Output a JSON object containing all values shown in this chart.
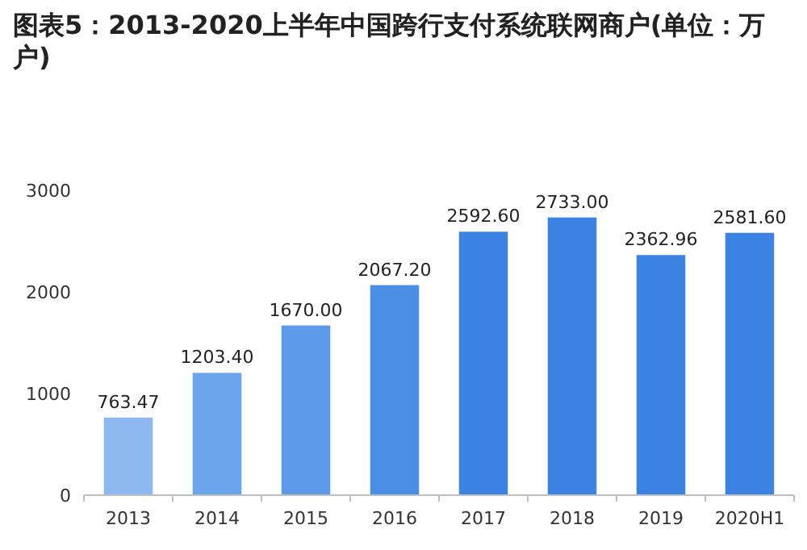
{
  "chart_data": {
    "type": "bar",
    "title": "图表5：2013-2020上半年中国跨行支付系统联网商户(单位：万户)",
    "categories": [
      "2013",
      "2014",
      "2015",
      "2016",
      "2017",
      "2018",
      "2019",
      "2020H1"
    ],
    "values": [
      763.47,
      1203.4,
      1670,
      2067.2,
      2592.6,
      2733,
      2362.96,
      2581.6
    ],
    "value_labels": [
      "763.47",
      "1203.40",
      "1670.00",
      "2067.20",
      "2592.60",
      "2733.00",
      "2362.96",
      "2581.60"
    ],
    "colors": [
      "#8db9f0",
      "#6aa4ec",
      "#5d9bea",
      "#4a8ee6",
      "#3b82e2",
      "#3b82e2",
      "#3b82e2",
      "#3b82e2"
    ],
    "ylim": [
      0,
      3000
    ],
    "yticks": [
      0,
      1000,
      2000,
      3000
    ]
  }
}
